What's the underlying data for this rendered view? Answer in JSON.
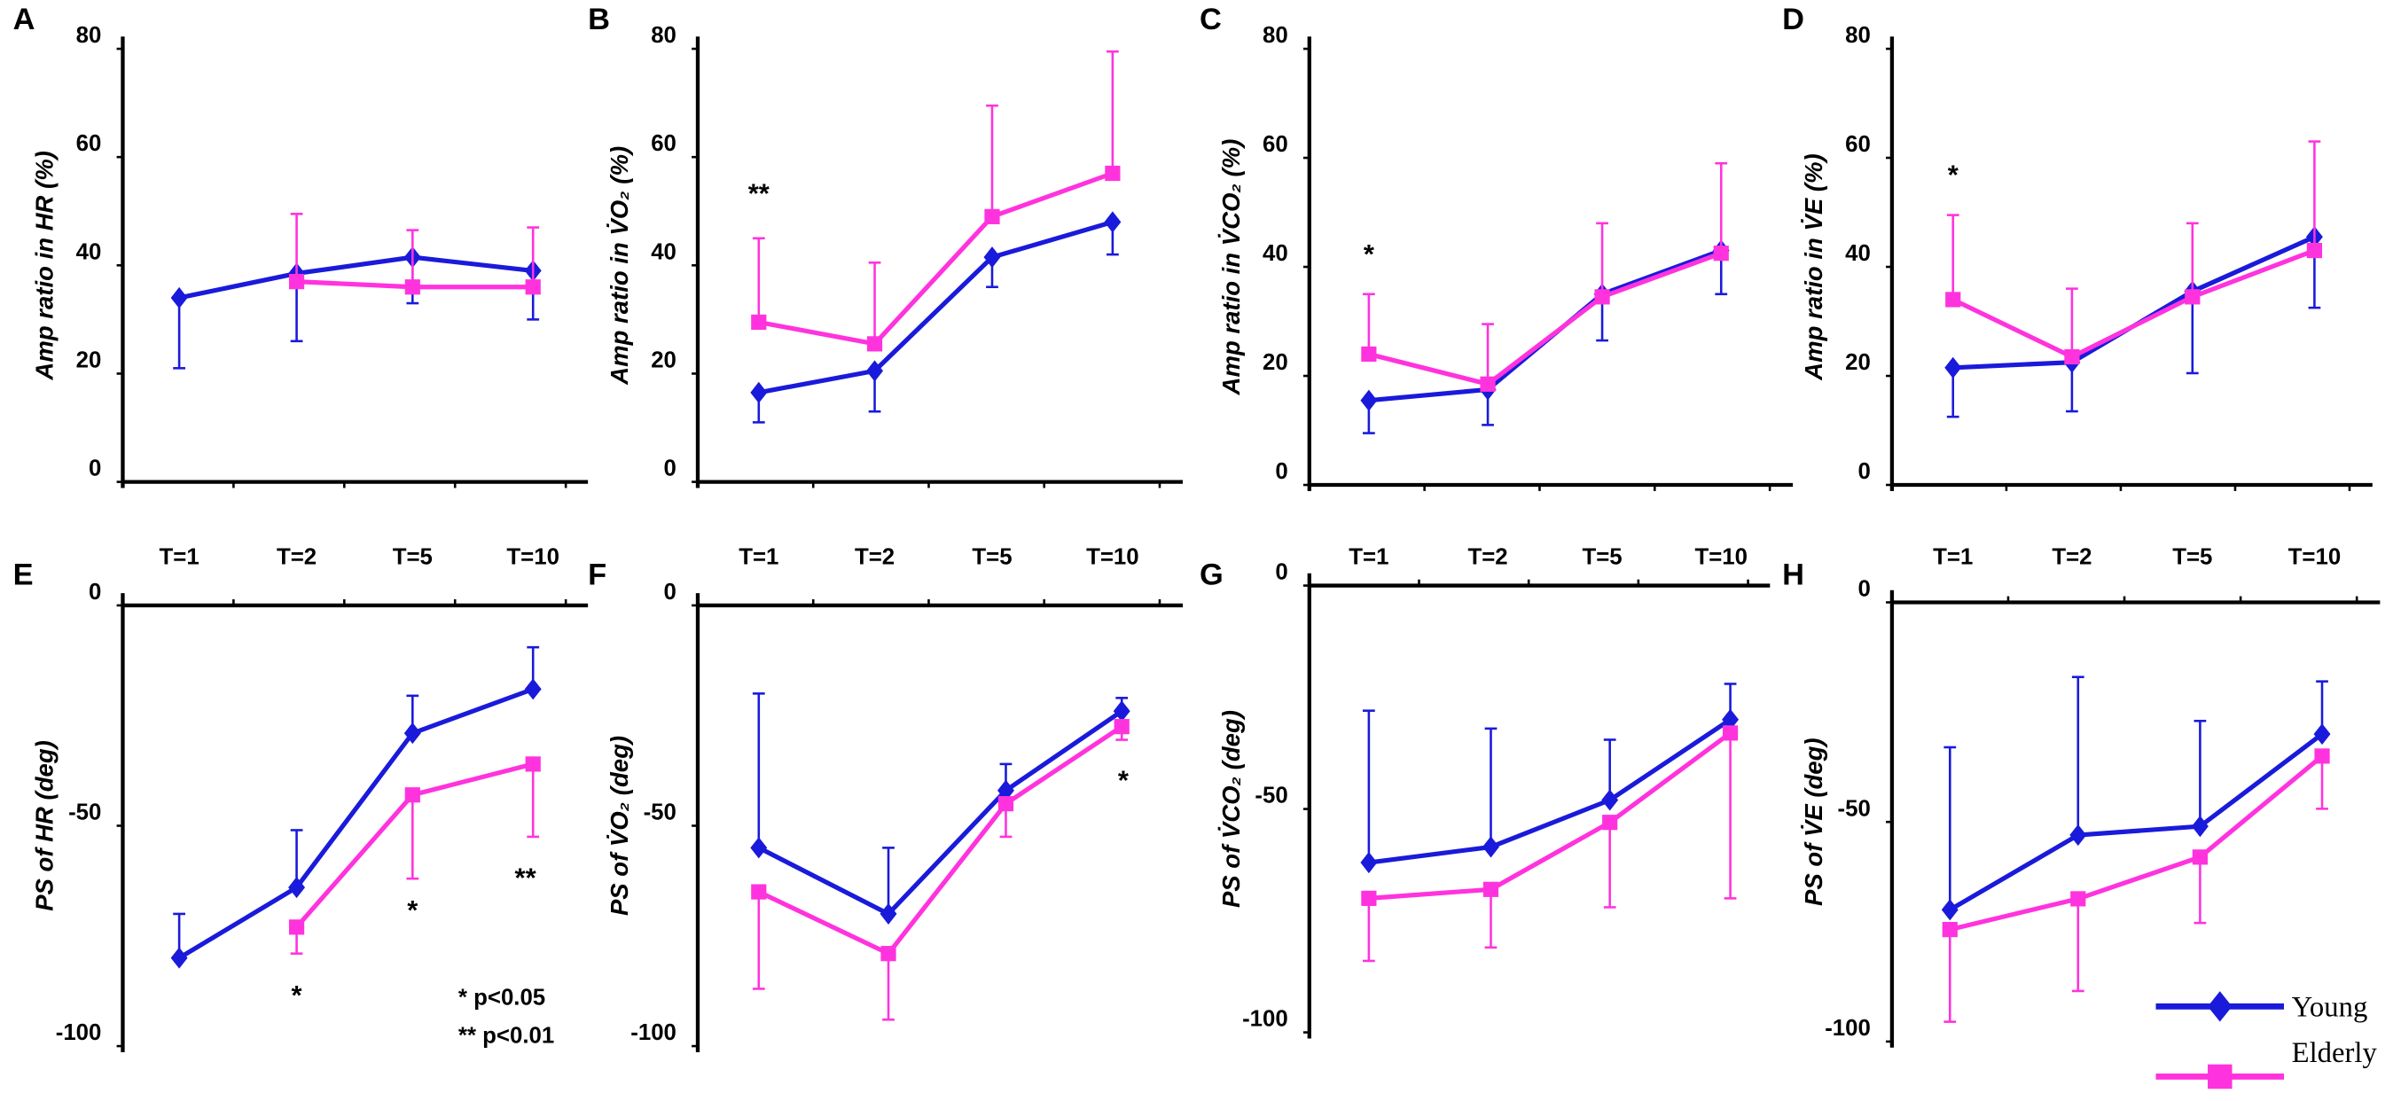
{
  "chart_data": [
    {
      "type": "line",
      "label": "A",
      "ylabel": "Amp ratio in HR (%)",
      "categories": [
        "T=1",
        "T=2",
        "T=5",
        "T=10"
      ],
      "ylim": [
        0,
        80
      ],
      "yticks": [
        0,
        20,
        40,
        60,
        80
      ],
      "series": [
        {
          "name": "Young",
          "color": "#1a1adb",
          "values": [
            34,
            38.5,
            41.5,
            39
          ],
          "errors": [
            13,
            12.5,
            8.5,
            9
          ]
        },
        {
          "name": "Elderly",
          "color": "#ff33dd",
          "values": [
            null,
            37,
            36,
            36
          ],
          "errors": [
            null,
            12.5,
            10.5,
            11
          ]
        }
      ],
      "annotations": []
    },
    {
      "type": "line",
      "label": "B",
      "ylabel": "Amp ratio in V̇O₂ (%)",
      "categories": [
        "T=1",
        "T=2",
        "T=5",
        "T=10"
      ],
      "ylim": [
        0,
        80
      ],
      "yticks": [
        0,
        20,
        40,
        60,
        80
      ],
      "series": [
        {
          "name": "Young",
          "color": "#1a1adb",
          "values": [
            16.5,
            20.5,
            41.5,
            48
          ],
          "errors": [
            5.5,
            7.5,
            5.5,
            6
          ]
        },
        {
          "name": "Elderly",
          "color": "#ff33dd",
          "values": [
            29.5,
            25.5,
            49,
            57
          ],
          "errors": [
            15.5,
            15,
            20.5,
            22.5
          ]
        }
      ],
      "annotations": [
        "**"
      ]
    },
    {
      "type": "line",
      "label": "C",
      "ylabel": "Amp ratio in V̇CO₂ (%)",
      "categories": [
        "T=1",
        "T=2",
        "T=5",
        "T=10"
      ],
      "ylim": [
        0,
        80
      ],
      "yticks": [
        0,
        20,
        40,
        60,
        80
      ],
      "series": [
        {
          "name": "Young",
          "color": "#1a1adb",
          "values": [
            15.5,
            17.5,
            35,
            43
          ],
          "errors": [
            6,
            6.5,
            8.5,
            8
          ]
        },
        {
          "name": "Elderly",
          "color": "#ff33dd",
          "values": [
            24,
            18.5,
            34.5,
            42.5
          ],
          "errors": [
            11,
            11,
            13.5,
            16.5
          ]
        }
      ],
      "annotations": [
        "*"
      ]
    },
    {
      "type": "line",
      "label": "D",
      "ylabel": "Amp ratio in V̇E (%)",
      "categories": [
        "T=1",
        "T=2",
        "T=5",
        "T=10"
      ],
      "ylim": [
        0,
        80
      ],
      "yticks": [
        0,
        20,
        40,
        60,
        80
      ],
      "series": [
        {
          "name": "Young",
          "color": "#1a1adb",
          "values": [
            21.5,
            22.5,
            35.5,
            45.5
          ],
          "errors": [
            9,
            9,
            15,
            13
          ]
        },
        {
          "name": "Elderly",
          "color": "#ff33dd",
          "values": [
            34,
            23.5,
            34.5,
            43
          ],
          "errors": [
            15.5,
            12.5,
            13.5,
            20
          ]
        }
      ],
      "annotations": [
        "*"
      ]
    },
    {
      "type": "line",
      "label": "E",
      "ylabel": "PS of HR (deg)",
      "categories": [
        null,
        null,
        null,
        null
      ],
      "ylim": [
        -100,
        0
      ],
      "yticks": [
        -100,
        -50,
        0
      ],
      "series": [
        {
          "name": "Young",
          "color": "#1a1adb",
          "values": [
            -80,
            -64,
            -29,
            -19
          ],
          "errors": [
            10,
            13,
            8.5,
            9.5
          ]
        },
        {
          "name": "Elderly",
          "color": "#ff33dd",
          "values": [
            null,
            -73,
            -43,
            -36
          ],
          "errors": [
            null,
            6,
            19,
            16.5
          ]
        }
      ],
      "annotations": [
        "*",
        "*",
        "**",
        "* p<0.05",
        "** p<0.01"
      ]
    },
    {
      "type": "line",
      "label": "F",
      "ylabel": "PS of V̇O₂ (deg)",
      "categories": [
        null,
        null,
        null,
        null
      ],
      "ylim": [
        -100,
        0
      ],
      "yticks": [
        -100,
        -50,
        0
      ],
      "series": [
        {
          "name": "Young",
          "color": "#1a1adb",
          "values": [
            -55,
            -70,
            -42,
            -24
          ],
          "errors": [
            35,
            15,
            6,
            3
          ]
        },
        {
          "name": "Elderly",
          "color": "#ff33dd",
          "values": [
            -65,
            -79,
            -45,
            -27.5
          ],
          "errors": [
            22,
            15,
            7.5,
            3
          ]
        }
      ],
      "annotations": [
        "*"
      ]
    },
    {
      "type": "line",
      "label": "G",
      "ylabel": "PS of V̇CO₂ (deg)",
      "categories": [
        null,
        null,
        null,
        null
      ],
      "ylim": [
        -100,
        0
      ],
      "yticks": [
        -100,
        -50,
        0
      ],
      "series": [
        {
          "name": "Young",
          "color": "#1a1adb",
          "values": [
            -62,
            -58.5,
            -48,
            -30
          ],
          "errors": [
            34,
            26.5,
            13.5,
            8
          ]
        },
        {
          "name": "Elderly",
          "color": "#ff33dd",
          "values": [
            -70,
            -68,
            -53,
            -33
          ],
          "errors": [
            14,
            13,
            19,
            37
          ]
        }
      ],
      "annotations": []
    },
    {
      "type": "line",
      "label": "H",
      "ylabel": "PS of V̇E (deg)",
      "categories": [
        null,
        null,
        null,
        null
      ],
      "ylim": [
        -100,
        0
      ],
      "yticks": [
        -100,
        -50,
        0
      ],
      "series": [
        {
          "name": "Young",
          "color": "#1a1adb",
          "values": [
            -70,
            -53,
            -51,
            -30
          ],
          "errors": [
            37,
            36,
            24,
            12
          ]
        },
        {
          "name": "Elderly",
          "color": "#ff33dd",
          "values": [
            -74.5,
            -67.5,
            -58,
            -35
          ],
          "errors": [
            21,
            21,
            15,
            12
          ]
        }
      ],
      "annotations": []
    }
  ]
}
